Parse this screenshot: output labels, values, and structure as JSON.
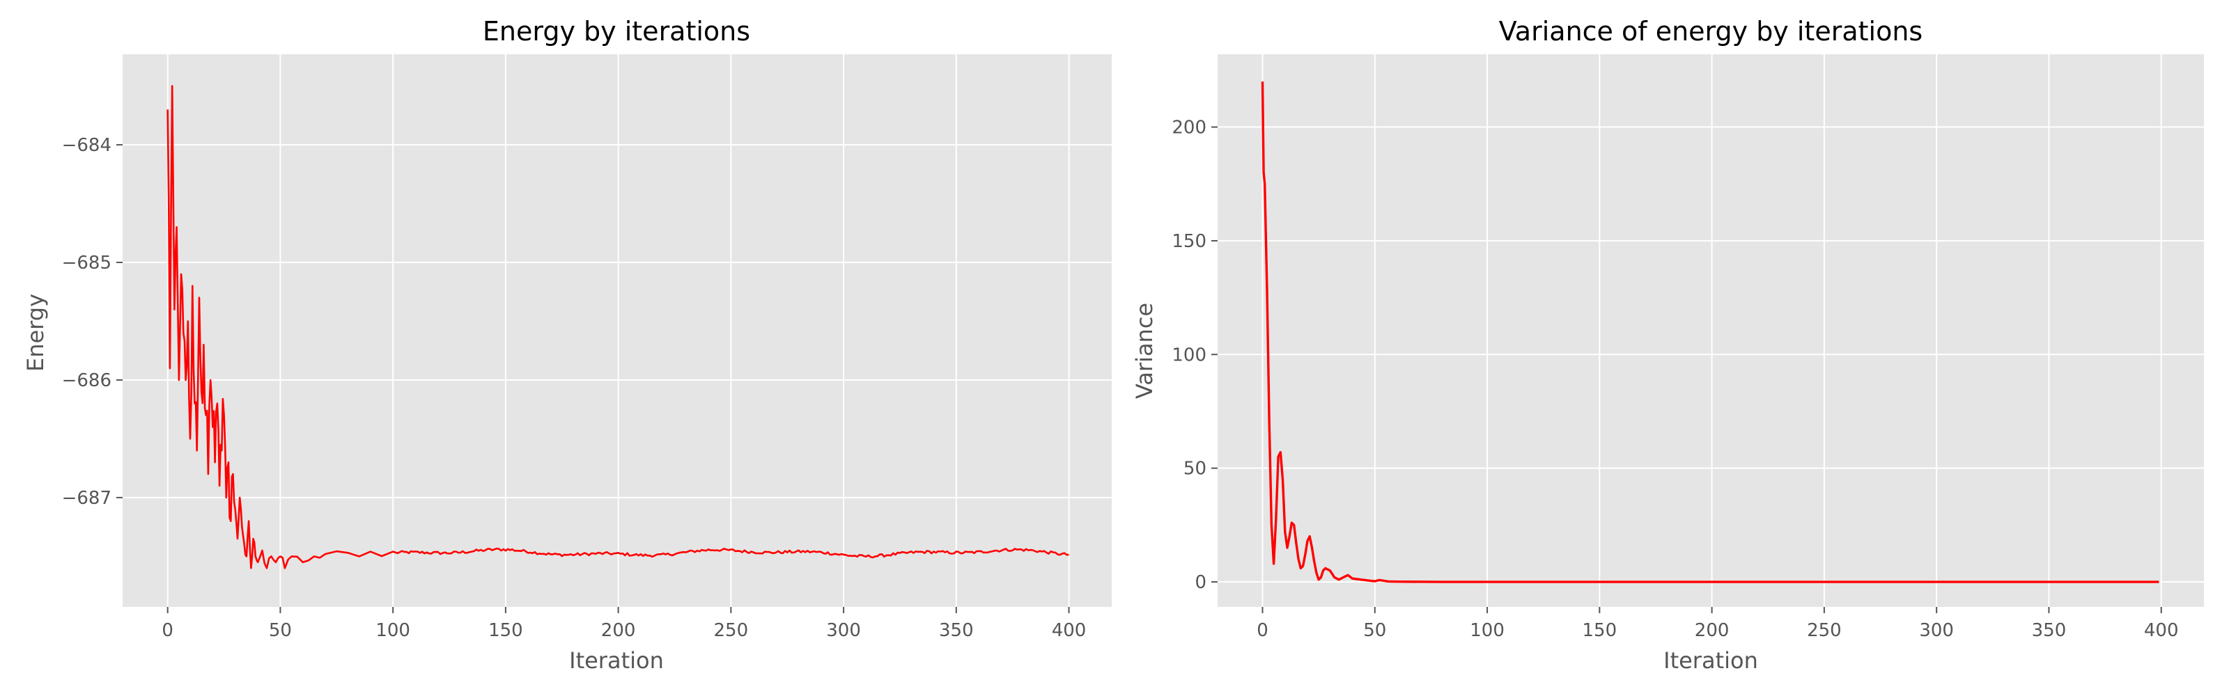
{
  "chart_data": [
    {
      "type": "line",
      "title": "Energy by iterations",
      "xlabel": "Iteration",
      "ylabel": "Energy",
      "xlim": [
        -20,
        419
      ],
      "ylim": [
        -687.93,
        -683.23
      ],
      "xticks": [
        0,
        50,
        100,
        150,
        200,
        250,
        300,
        350,
        400
      ],
      "xtick_labels": [
        "0",
        "50",
        "100",
        "150",
        "200",
        "250",
        "300",
        "350",
        "400"
      ],
      "yticks": [
        -684,
        -685,
        -686,
        -687
      ],
      "ytick_labels": [
        "−684",
        "−685",
        "−686",
        "−687"
      ],
      "grid": true,
      "series": [
        {
          "color": "#ff0000",
          "description_points": [
            [
              0,
              -683.7
            ],
            [
              1,
              -685.9
            ],
            [
              2,
              -683.5
            ],
            [
              3,
              -685.4
            ],
            [
              4,
              -684.7
            ],
            [
              5,
              -686.0
            ],
            [
              6,
              -685.1
            ],
            [
              7,
              -685.6
            ],
            [
              8,
              -686.0
            ],
            [
              9,
              -685.5
            ],
            [
              10,
              -686.5
            ],
            [
              11,
              -685.2
            ],
            [
              12,
              -686.2
            ],
            [
              13,
              -686.6
            ],
            [
              14,
              -685.3
            ],
            [
              15,
              -686.1
            ],
            [
              16,
              -685.7
            ],
            [
              17,
              -686.3
            ],
            [
              18,
              -686.8
            ],
            [
              19,
              -686.0
            ],
            [
              20,
              -686.4
            ],
            [
              21,
              -686.7
            ],
            [
              22,
              -686.2
            ],
            [
              23,
              -686.9
            ],
            [
              24,
              -686.6
            ],
            [
              25,
              -686.3
            ],
            [
              26,
              -687.0
            ],
            [
              27,
              -686.7
            ],
            [
              28,
              -687.2
            ],
            [
              29,
              -686.8
            ],
            [
              30,
              -687.1
            ],
            [
              31,
              -687.35
            ],
            [
              32,
              -687.0
            ],
            [
              33,
              -687.25
            ],
            [
              34,
              -687.4
            ],
            [
              35,
              -687.5
            ],
            [
              36,
              -687.2
            ],
            [
              37,
              -687.6
            ],
            [
              38,
              -687.35
            ],
            [
              39,
              -687.5
            ],
            [
              40,
              -687.55
            ],
            [
              42,
              -687.45
            ],
            [
              44,
              -687.6
            ],
            [
              46,
              -687.5
            ],
            [
              48,
              -687.55
            ],
            [
              50,
              -687.5
            ],
            [
              52,
              -687.6
            ],
            [
              55,
              -687.5
            ],
            [
              60,
              -687.55
            ],
            [
              65,
              -687.5
            ],
            [
              70,
              -687.48
            ],
            [
              80,
              -687.47
            ],
            [
              90,
              -687.46
            ],
            [
              100,
              -687.46
            ]
          ],
          "tail_start": 100,
          "tail_end": 400,
          "tail_base": -687.47,
          "tail_noise": 0.012
        }
      ]
    },
    {
      "type": "line",
      "title": "Variance of energy by iterations",
      "xlabel": "Iteration",
      "ylabel": "Variance",
      "xlim": [
        -20,
        419
      ],
      "ylim": [
        -11,
        232
      ],
      "xticks": [
        0,
        50,
        100,
        150,
        200,
        250,
        300,
        350,
        400
      ],
      "xtick_labels": [
        "0",
        "50",
        "100",
        "150",
        "200",
        "250",
        "300",
        "350",
        "400"
      ],
      "yticks": [
        0,
        50,
        100,
        150,
        200
      ],
      "ytick_labels": [
        "0",
        "50",
        "100",
        "150",
        "200"
      ],
      "grid": true,
      "series": [
        {
          "color": "#ff0000",
          "description_points": [
            [
              0,
              220
            ],
            [
              0.5,
              180
            ],
            [
              1,
              175
            ],
            [
              2,
              128
            ],
            [
              3,
              70
            ],
            [
              4,
              25
            ],
            [
              5,
              8
            ],
            [
              6,
              28
            ],
            [
              7,
              55
            ],
            [
              8,
              57
            ],
            [
              9,
              45
            ],
            [
              10,
              22
            ],
            [
              11,
              15
            ],
            [
              12,
              20
            ],
            [
              13,
              26
            ],
            [
              14,
              25
            ],
            [
              15,
              17
            ],
            [
              16,
              10
            ],
            [
              17,
              6
            ],
            [
              18,
              7
            ],
            [
              19,
              12
            ],
            [
              20,
              18
            ],
            [
              21,
              20
            ],
            [
              22,
              15
            ],
            [
              23,
              9
            ],
            [
              24,
              4
            ],
            [
              25,
              1
            ],
            [
              26,
              2
            ],
            [
              27,
              5
            ],
            [
              28,
              6
            ],
            [
              30,
              5
            ],
            [
              32,
              2
            ],
            [
              34,
              1
            ],
            [
              36,
              2
            ],
            [
              38,
              3
            ],
            [
              40,
              1.5
            ],
            [
              44,
              1
            ],
            [
              48,
              0.5
            ],
            [
              50,
              0.3
            ],
            [
              52,
              0.8
            ],
            [
              56,
              0.2
            ],
            [
              60,
              0.1
            ],
            [
              80,
              0
            ],
            [
              120,
              0
            ],
            [
              200,
              0
            ],
            [
              300,
              0
            ],
            [
              399,
              0
            ]
          ]
        }
      ]
    }
  ]
}
